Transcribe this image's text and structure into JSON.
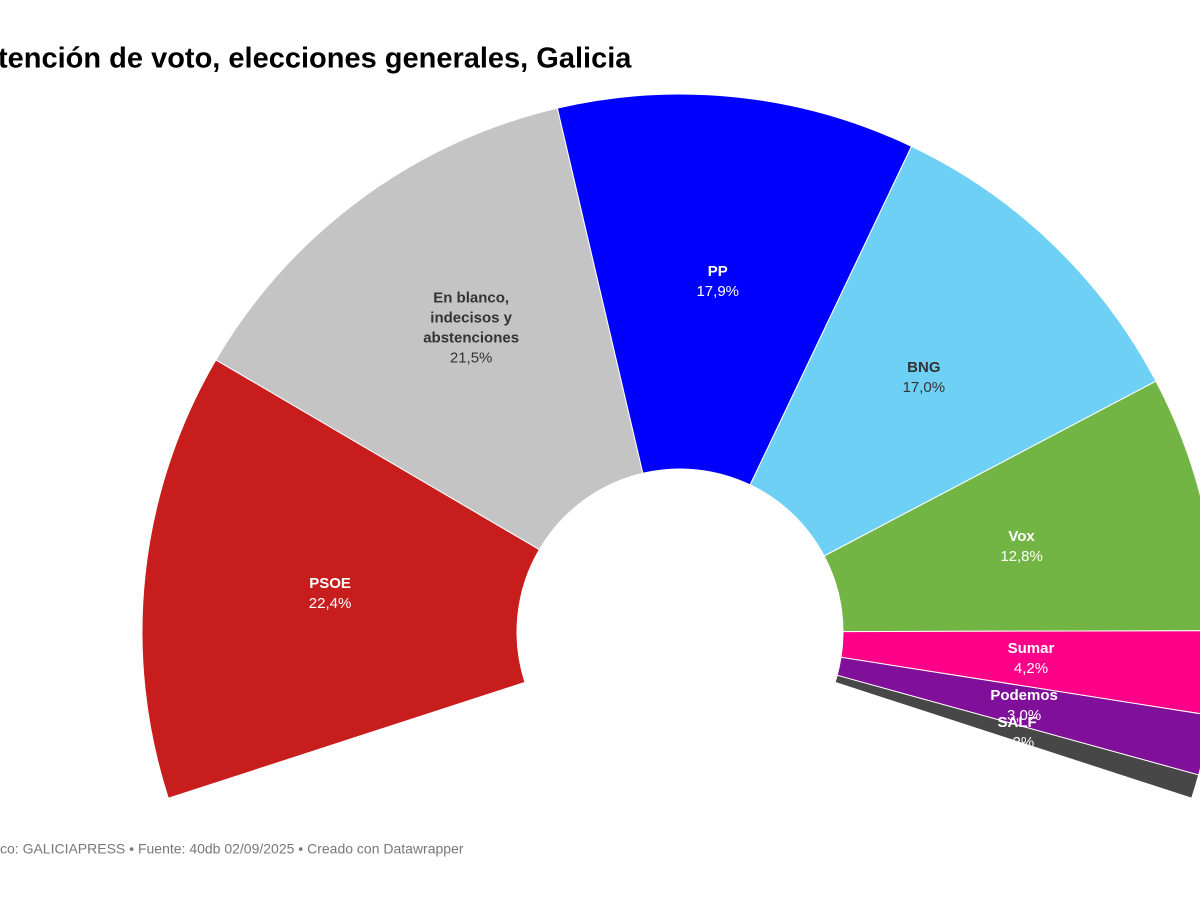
{
  "chart_data": {
    "type": "donut",
    "title": "tención de voto, elecciones generales, Galicia",
    "footer": "co: GALICIAPRESS • Fuente: 40db 02/09/2025 • Creado con Datawrapper",
    "categories": [
      "PSOE",
      "En blanco, indecisos y abstenciones",
      "PP",
      "BNG",
      "Vox",
      "Sumar",
      "Podemos",
      "SALF"
    ],
    "values": [
      22.4,
      21.5,
      17.9,
      17.0,
      12.8,
      4.2,
      3.0,
      1.2
    ],
    "value_labels": [
      "22,4%",
      "21,5%",
      "17,9%",
      "17,0%",
      "12,8%",
      "4,2%",
      "3,0%",
      "1,2%"
    ],
    "colors": [
      "#c71e1d",
      "#c4c4c4",
      "#0000ff",
      "#6fd0f5",
      "#72b545",
      "#ff0088",
      "#800f99",
      "#474747"
    ]
  }
}
